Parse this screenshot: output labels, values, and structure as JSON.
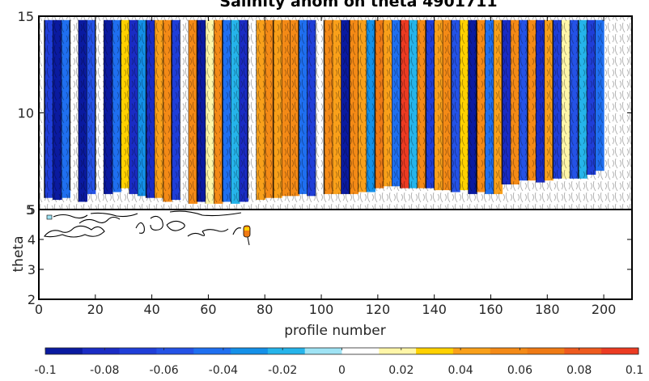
{
  "chart_data": {
    "type": "heatmap",
    "title": "Salinity anom on theta    4901711",
    "xlabel": "profile number",
    "ylabel": "theta",
    "xlim": [
      0,
      210
    ],
    "ylim": [
      2,
      15
    ],
    "x_ticks": [
      "0",
      "20",
      "40",
      "60",
      "80",
      "100",
      "120",
      "140",
      "160",
      "180",
      "200"
    ],
    "y_ticks_upper": [
      "5",
      "10",
      "15"
    ],
    "y_ticks_lower": [
      "2",
      "3",
      "4",
      "5"
    ],
    "colorbar": {
      "range": [
        -0.1,
        0.1
      ],
      "ticks": [
        "-0.1",
        "-0.08",
        "-0.06",
        "-0.04",
        "-0.02",
        "0",
        "0.02",
        "0.04",
        "0.06",
        "0.08",
        "0.1"
      ],
      "colors": [
        "#0a1aa0",
        "#1a2cc4",
        "#1f3ed8",
        "#2452e6",
        "#1f6ff0",
        "#1490e8",
        "#25b4ea",
        "#9fe3f4",
        "#ffffff",
        "#fff6a8",
        "#ffd100",
        "#f9a01a",
        "#f48a16",
        "#ef7a14",
        "#ee5a1e",
        "#ec3b22"
      ]
    },
    "columns": [
      {
        "x0": 2,
        "x1": 5,
        "v": -0.07,
        "top": 14.8,
        "bottom": 5.6
      },
      {
        "x0": 5,
        "x1": 8,
        "v": -0.09,
        "top": 14.8,
        "bottom": 5.5
      },
      {
        "x0": 8,
        "x1": 11,
        "v": -0.05,
        "top": 14.8,
        "bottom": 5.6
      },
      {
        "x0": 11,
        "x1": 14,
        "v": 0.0,
        "top": 14.8,
        "bottom": 6.0
      },
      {
        "x0": 14,
        "x1": 17,
        "v": -0.09,
        "top": 14.8,
        "bottom": 5.4
      },
      {
        "x0": 17,
        "x1": 20,
        "v": -0.06,
        "top": 14.8,
        "bottom": 5.8
      },
      {
        "x0": 20,
        "x1": 23,
        "v": 0.01,
        "top": 14.8,
        "bottom": 6.0
      },
      {
        "x0": 23,
        "x1": 26,
        "v": -0.09,
        "top": 14.8,
        "bottom": 5.8
      },
      {
        "x0": 26,
        "x1": 29,
        "v": -0.05,
        "top": 14.8,
        "bottom": 5.9
      },
      {
        "x0": 29,
        "x1": 32,
        "v": 0.03,
        "top": 14.8,
        "bottom": 6.1
      },
      {
        "x0": 32,
        "x1": 35,
        "v": -0.08,
        "top": 14.8,
        "bottom": 5.8
      },
      {
        "x0": 35,
        "x1": 38,
        "v": -0.03,
        "top": 14.8,
        "bottom": 5.7
      },
      {
        "x0": 38,
        "x1": 41,
        "v": -0.08,
        "top": 14.8,
        "bottom": 5.6
      },
      {
        "x0": 41,
        "x1": 44,
        "v": 0.04,
        "top": 14.8,
        "bottom": 5.6
      },
      {
        "x0": 44,
        "x1": 47,
        "v": 0.06,
        "top": 14.8,
        "bottom": 5.4
      },
      {
        "x0": 47,
        "x1": 50,
        "v": -0.07,
        "top": 14.8,
        "bottom": 5.5
      },
      {
        "x0": 50,
        "x1": 53,
        "v": 0.0,
        "top": 14.8,
        "bottom": 5.6
      },
      {
        "x0": 53,
        "x1": 56,
        "v": 0.05,
        "top": 14.8,
        "bottom": 5.3
      },
      {
        "x0": 56,
        "x1": 59,
        "v": -0.09,
        "top": 14.8,
        "bottom": 5.4
      },
      {
        "x0": 59,
        "x1": 62,
        "v": 0.02,
        "top": 14.8,
        "bottom": 5.3
      },
      {
        "x0": 62,
        "x1": 65,
        "v": 0.05,
        "top": 14.8,
        "bottom": 5.3
      },
      {
        "x0": 65,
        "x1": 68,
        "v": -0.05,
        "top": 14.8,
        "bottom": 5.4
      },
      {
        "x0": 68,
        "x1": 71,
        "v": -0.02,
        "top": 14.8,
        "bottom": 5.3
      },
      {
        "x0": 71,
        "x1": 74,
        "v": -0.08,
        "top": 14.8,
        "bottom": 5.4
      },
      {
        "x0": 74,
        "x1": 77,
        "v": 0.0,
        "top": 14.8,
        "bottom": 5.6
      },
      {
        "x0": 77,
        "x1": 80,
        "v": 0.04,
        "top": 14.8,
        "bottom": 5.5
      },
      {
        "x0": 80,
        "x1": 83,
        "v": 0.05,
        "top": 14.8,
        "bottom": 5.6
      },
      {
        "x0": 83,
        "x1": 86,
        "v": 0.04,
        "top": 14.8,
        "bottom": 5.6
      },
      {
        "x0": 86,
        "x1": 89,
        "v": 0.06,
        "top": 14.8,
        "bottom": 5.7
      },
      {
        "x0": 89,
        "x1": 92,
        "v": 0.05,
        "top": 14.8,
        "bottom": 5.7
      },
      {
        "x0": 92,
        "x1": 95,
        "v": -0.04,
        "top": 14.8,
        "bottom": 5.8
      },
      {
        "x0": 95,
        "x1": 98,
        "v": -0.07,
        "top": 14.8,
        "bottom": 5.7
      },
      {
        "x0": 98,
        "x1": 101,
        "v": 0.0,
        "top": 14.8,
        "bottom": 5.7
      },
      {
        "x0": 101,
        "x1": 104,
        "v": 0.06,
        "top": 14.8,
        "bottom": 5.8
      },
      {
        "x0": 104,
        "x1": 107,
        "v": 0.04,
        "top": 14.8,
        "bottom": 5.8
      },
      {
        "x0": 107,
        "x1": 110,
        "v": -0.09,
        "top": 14.8,
        "bottom": 5.8
      },
      {
        "x0": 110,
        "x1": 113,
        "v": 0.05,
        "top": 14.8,
        "bottom": 5.8
      },
      {
        "x0": 113,
        "x1": 116,
        "v": 0.04,
        "top": 14.8,
        "bottom": 5.9
      },
      {
        "x0": 116,
        "x1": 119,
        "v": -0.03,
        "top": 14.8,
        "bottom": 5.9
      },
      {
        "x0": 119,
        "x1": 122,
        "v": 0.07,
        "top": 14.8,
        "bottom": 6.1
      },
      {
        "x0": 122,
        "x1": 125,
        "v": 0.04,
        "top": 14.8,
        "bottom": 6.2
      },
      {
        "x0": 125,
        "x1": 128,
        "v": -0.05,
        "top": 14.8,
        "bottom": 6.2
      },
      {
        "x0": 128,
        "x1": 131,
        "v": 0.09,
        "top": 14.8,
        "bottom": 6.1
      },
      {
        "x0": 131,
        "x1": 134,
        "v": -0.02,
        "top": 14.8,
        "bottom": 6.1
      },
      {
        "x0": 134,
        "x1": 137,
        "v": 0.05,
        "top": 14.8,
        "bottom": 6.1
      },
      {
        "x0": 137,
        "x1": 140,
        "v": -0.07,
        "top": 14.8,
        "bottom": 6.1
      },
      {
        "x0": 140,
        "x1": 143,
        "v": 0.04,
        "top": 14.8,
        "bottom": 6.0
      },
      {
        "x0": 143,
        "x1": 146,
        "v": 0.06,
        "top": 14.8,
        "bottom": 6.0
      },
      {
        "x0": 146,
        "x1": 149,
        "v": -0.06,
        "top": 14.8,
        "bottom": 5.9
      },
      {
        "x0": 149,
        "x1": 152,
        "v": 0.03,
        "top": 14.8,
        "bottom": 6.0
      },
      {
        "x0": 152,
        "x1": 155,
        "v": -0.09,
        "top": 14.8,
        "bottom": 5.8
      },
      {
        "x0": 155,
        "x1": 158,
        "v": 0.05,
        "top": 14.8,
        "bottom": 5.9
      },
      {
        "x0": 158,
        "x1": 161,
        "v": -0.05,
        "top": 14.8,
        "bottom": 5.8
      },
      {
        "x0": 161,
        "x1": 164,
        "v": 0.04,
        "top": 14.8,
        "bottom": 5.8
      },
      {
        "x0": 164,
        "x1": 167,
        "v": -0.08,
        "top": 14.8,
        "bottom": 6.3
      },
      {
        "x0": 167,
        "x1": 170,
        "v": 0.05,
        "top": 14.8,
        "bottom": 6.3
      },
      {
        "x0": 170,
        "x1": 173,
        "v": -0.06,
        "top": 14.8,
        "bottom": 6.5
      },
      {
        "x0": 173,
        "x1": 176,
        "v": 0.06,
        "top": 14.8,
        "bottom": 6.5
      },
      {
        "x0": 176,
        "x1": 179,
        "v": -0.08,
        "top": 14.8,
        "bottom": 6.4
      },
      {
        "x0": 179,
        "x1": 182,
        "v": 0.04,
        "top": 14.8,
        "bottom": 6.5
      },
      {
        "x0": 182,
        "x1": 185,
        "v": -0.07,
        "top": 14.8,
        "bottom": 6.6
      },
      {
        "x0": 185,
        "x1": 188,
        "v": 0.02,
        "top": 14.8,
        "bottom": 6.6
      },
      {
        "x0": 188,
        "x1": 191,
        "v": -0.06,
        "top": 14.8,
        "bottom": 6.6
      },
      {
        "x0": 191,
        "x1": 194,
        "v": -0.02,
        "top": 14.8,
        "bottom": 6.6
      },
      {
        "x0": 194,
        "x1": 197,
        "v": -0.07,
        "top": 14.8,
        "bottom": 6.8
      },
      {
        "x0": 197,
        "x1": 200,
        "v": -0.05,
        "top": 14.8,
        "bottom": 7.0
      }
    ]
  }
}
